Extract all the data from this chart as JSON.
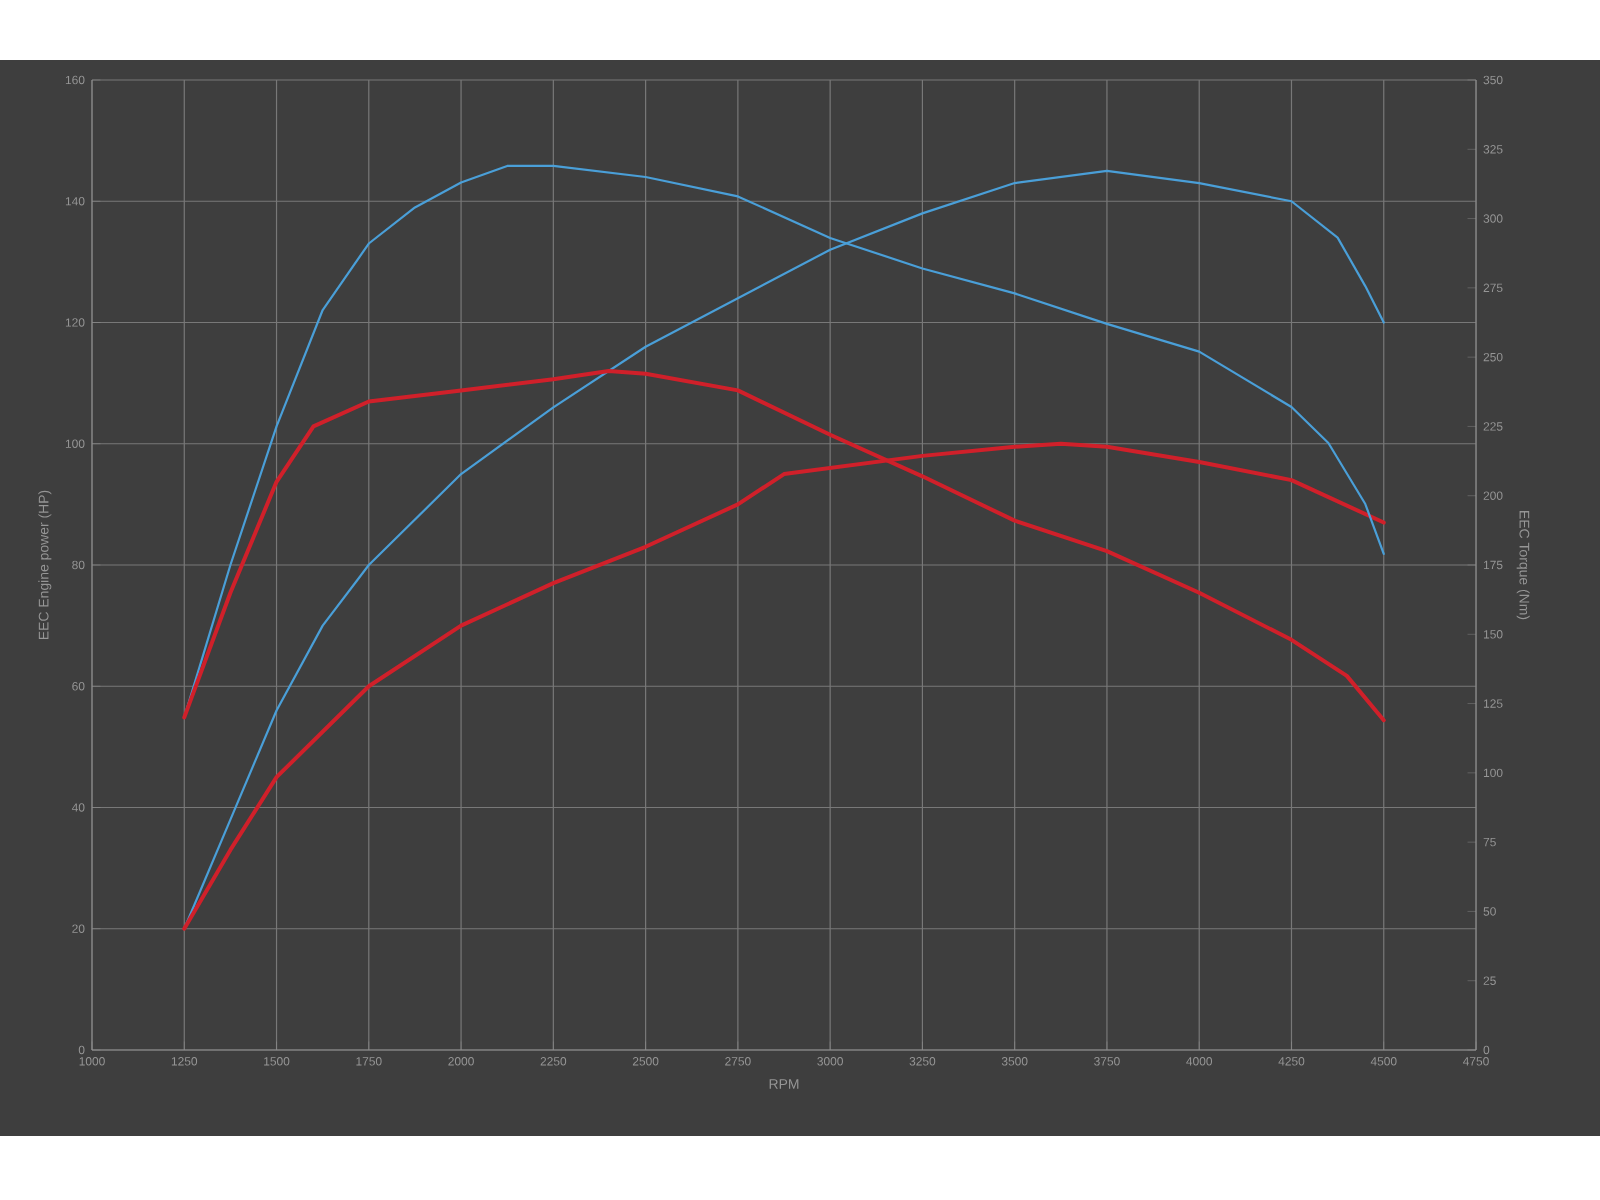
{
  "chart_data": {
    "type": "line",
    "xlabel": "RPM",
    "ylabel": "EEC Engine power (HP)",
    "y2label": "EEC Torque (Nm)",
    "xlim": [
      1000,
      4750
    ],
    "xticks": [
      1000,
      1250,
      1500,
      1750,
      2000,
      2250,
      2500,
      2750,
      3000,
      3250,
      3500,
      3750,
      4000,
      4250,
      4500,
      4750
    ],
    "ylim": [
      0,
      160
    ],
    "yticks": [
      0,
      20,
      40,
      60,
      80,
      100,
      120,
      140,
      160
    ],
    "y2lim": [
      0,
      350
    ],
    "y2ticks": [
      0,
      25,
      50,
      75,
      100,
      125,
      150,
      175,
      200,
      225,
      250,
      275,
      300,
      325,
      350
    ],
    "grid": true,
    "marker": "none",
    "line_style": "solid",
    "series": [
      {
        "color": "#4a9fd8",
        "x": [
          1250,
          1375,
          1500,
          1625,
          1750,
          2000,
          2250,
          2500,
          2750,
          3000,
          3250,
          3500,
          3625,
          3750,
          4000,
          4250,
          4375,
          4450,
          4500
        ],
        "values": [
          20,
          38,
          56,
          70,
          80,
          95,
          106,
          116,
          124,
          132,
          138,
          143,
          144,
          145,
          143,
          140,
          134,
          126,
          120
        ]
      },
      {
        "color": "#d0202a",
        "x": [
          1250,
          1375,
          1500,
          1750,
          2000,
          2250,
          2500,
          2750,
          2875,
          3000,
          3250,
          3500,
          3625,
          3750,
          4000,
          4250,
          4500
        ],
        "values": [
          20,
          33,
          45,
          60,
          70,
          77,
          83,
          90,
          95,
          96,
          98,
          99.5,
          100,
          99.5,
          97,
          94,
          87
        ]
      },
      {
        "color": "#4a9fd8",
        "axis": "y2",
        "x": [
          1250,
          1375,
          1500,
          1625,
          1750,
          1875,
          2000,
          2125,
          2250,
          2500,
          2750,
          3000,
          3250,
          3500,
          3750,
          4000,
          4250,
          4350,
          4450,
          4500
        ],
        "values": [
          120,
          175,
          225,
          267,
          291,
          304,
          313,
          319,
          319,
          315,
          308,
          293,
          282,
          273,
          262,
          252,
          232,
          219,
          197,
          179
        ]
      },
      {
        "color": "#d0202a",
        "axis": "y2",
        "x": [
          1250,
          1375,
          1500,
          1600,
          1750,
          2000,
          2250,
          2400,
          2500,
          2750,
          3000,
          3250,
          3500,
          3750,
          4000,
          4250,
          4400,
          4500
        ],
        "values": [
          120,
          165,
          205,
          225,
          234,
          238,
          242,
          245,
          244,
          238,
          222,
          207,
          191,
          180,
          165,
          148,
          135,
          119
        ]
      }
    ]
  }
}
